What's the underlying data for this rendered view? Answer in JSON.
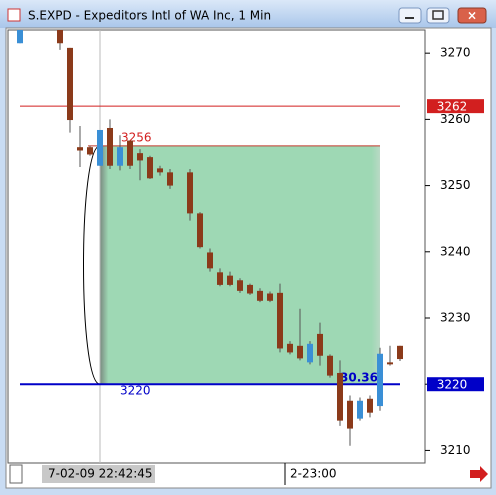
{
  "window_title": "S.EXPD - Expeditors Intl of WA Inc, 1 Min",
  "chart_data": {
    "type": "candlestick",
    "categories": [
      null,
      null,
      null,
      null,
      null,
      null,
      null,
      null,
      null,
      null,
      null,
      null,
      null,
      null,
      null,
      null,
      null,
      null,
      null,
      null,
      null,
      null,
      null,
      null,
      null,
      null,
      null,
      null,
      null,
      null,
      null,
      null,
      null,
      null,
      null,
      null,
      null,
      null,
      null
    ],
    "open": [
      3271.5,
      null,
      null,
      null,
      3273.5,
      3270.8,
      3255.8,
      3255.8,
      3253,
      3258.7,
      3253,
      3256.8,
      3254.9,
      3254.3,
      3252.6,
      3252,
      null,
      3252,
      3245.8,
      3239.9,
      3236.9,
      3236.4,
      3235.7,
      3235,
      3234.1,
      3233.7,
      3233.8,
      3226.1,
      3225.8,
      3223.3,
      3227.6,
      3224.3,
      3221.7,
      3217.5,
      3214.8,
      3217.8,
      3216.7,
      3223.3,
      3225.8
    ],
    "high": [
      3273.5,
      null,
      null,
      null,
      3273.5,
      3270.8,
      3259,
      3256,
      3258.4,
      3260,
      3257.6,
      3256.8,
      3255.5,
      3254.5,
      3253,
      3252.5,
      null,
      3252.5,
      3246,
      3240.5,
      3237.5,
      3237,
      3236,
      3235.2,
      3234.5,
      3234,
      3235.2,
      3226.5,
      3231.4,
      3226.5,
      3229.3,
      3224.5,
      3223.6,
      3218.3,
      3218,
      3218.3,
      3225.5,
      3225.8,
      3225.8
    ],
    "low": [
      3271.5,
      null,
      null,
      null,
      3270.5,
      3258,
      3252.8,
      3254.5,
      3253,
      3252.5,
      3252.3,
      3252.5,
      3250.8,
      3251,
      3251.5,
      3249.5,
      null,
      3244.7,
      3240.5,
      3237,
      3234.8,
      3234.8,
      3233.8,
      3233.5,
      3232.4,
      3232.4,
      3224.8,
      3224.5,
      3223.6,
      3223,
      3222.8,
      3221,
      3213.7,
      3210.7,
      3214.5,
      3215,
      3216,
      3222.8,
      3223.5
    ],
    "close": [
      3273.5,
      null,
      null,
      null,
      3271.5,
      3259.9,
      3255.3,
      3254.7,
      3258.4,
      3253,
      3255.8,
      3253,
      3253.8,
      3251.1,
      3252,
      3250,
      null,
      3245.8,
      3240.7,
      3237.5,
      3235,
      3235,
      3234.1,
      3233.7,
      3232.6,
      3232.6,
      3225.4,
      3224.8,
      3223.9,
      3226.1,
      3224.3,
      3221.3,
      3214.5,
      3213.3,
      3217.5,
      3215.7,
      3224.6,
      3223,
      3223.8
    ],
    "up_color": "#3a8fd6",
    "down_color": "#8b3a1a",
    "ylim": [
      3208.1,
      3273.5
    ],
    "yticks": [
      3210,
      3220,
      3230,
      3240,
      3250,
      3260,
      3270
    ],
    "x_labels": [
      "7-02-09 22:42:45",
      "2-23:00"
    ],
    "levels": [
      {
        "value": 3262,
        "color": "#d21f1f"
      },
      {
        "value": 3220,
        "color": "#0000c8"
      }
    ],
    "zone": {
      "top": 3256,
      "bottom": 3220,
      "value_label": "30.36",
      "color": "#8fd4a8"
    }
  }
}
